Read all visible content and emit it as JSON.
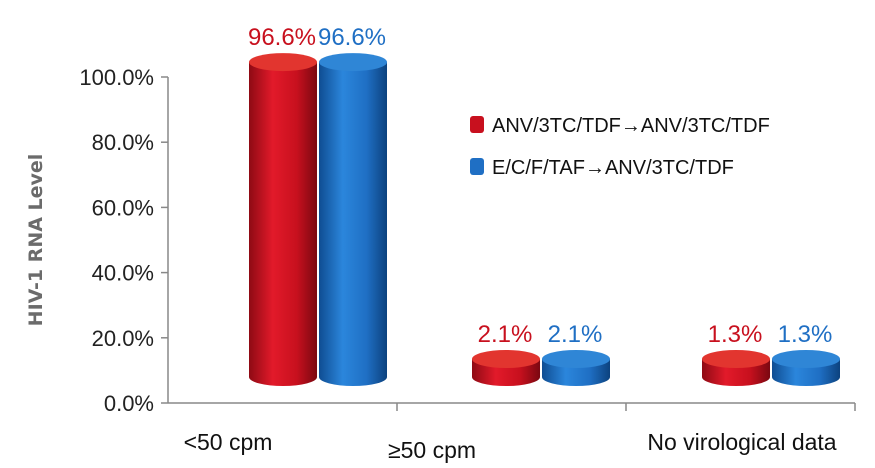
{
  "chart_data": {
    "type": "bar",
    "style": "3d-cylinder",
    "ylabel": "HIV-1 RNA Level",
    "xlabel": "",
    "categories": [
      "<50 cpm",
      "≥50 cpm",
      "No virological data"
    ],
    "ylim": [
      0,
      100
    ],
    "yticks": [
      "0.0%",
      "20.0%",
      "40.0%",
      "60.0%",
      "80.0%",
      "100.0%"
    ],
    "grid": false,
    "legend_position": "right",
    "series": [
      {
        "name": "ANV/3TC/TDF→ANV/3TC/TDF",
        "values": [
          96.6,
          2.1,
          1.3
        ],
        "labels": [
          "96.6%",
          "2.1%",
          "1.3%"
        ],
        "color": "#c8101e"
      },
      {
        "name": "E/C/F/TAF→ANV/3TC/TDF",
        "values": [
          96.6,
          2.1,
          1.3
        ],
        "labels": [
          "96.6%",
          "2.1%",
          "1.3%"
        ],
        "color": "#1f6fc4"
      }
    ]
  }
}
